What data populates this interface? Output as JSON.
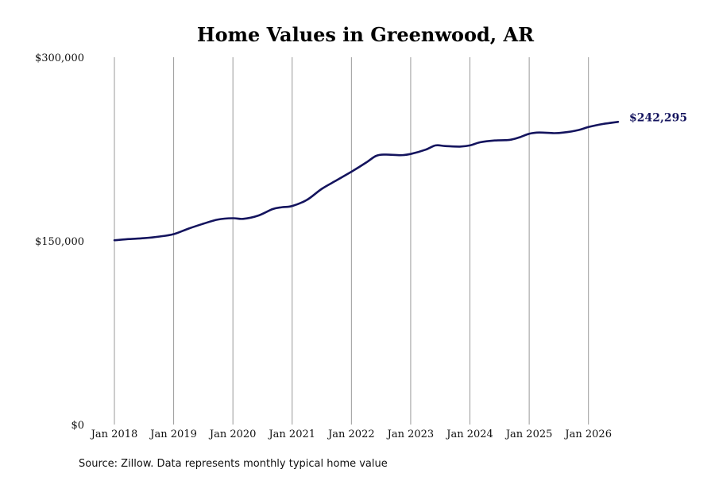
{
  "chart_data": {
    "type": "line",
    "title": "Home Values in Greenwood, AR",
    "source": "Source: Zillow. Data represents monthly typical home value",
    "ylim": [
      0,
      300000
    ],
    "yticks": [
      {
        "value": 0,
        "label": "$0"
      },
      {
        "value": 150000,
        "label": "$150,000"
      },
      {
        "value": 300000,
        "label": "$300,000"
      }
    ],
    "xticks": [
      {
        "value": 2018.0,
        "label": "Jan 2018"
      },
      {
        "value": 2019.0,
        "label": "Jan 2019"
      },
      {
        "value": 2020.0,
        "label": "Jan 2020"
      },
      {
        "value": 2021.0,
        "label": "Jan 2021"
      },
      {
        "value": 2022.0,
        "label": "Jan 2022"
      },
      {
        "value": 2023.0,
        "label": "Jan 2023"
      },
      {
        "value": 2024.0,
        "label": "Jan 2024"
      },
      {
        "value": 2025.0,
        "label": "Jan 2025"
      },
      {
        "value": 2026.0,
        "label": "Jan 2026"
      }
    ],
    "xlim": [
      2018.0,
      2026.5
    ],
    "grid": "vertical",
    "line_color": "#14145e",
    "end_label": "$242,295",
    "series": [
      {
        "x": [
          2018.0,
          2018.25,
          2018.5,
          2018.75,
          2019.0,
          2019.25,
          2019.5,
          2019.75,
          2020.0,
          2020.17,
          2020.42,
          2020.67,
          2020.83,
          2021.0,
          2021.25,
          2021.5,
          2021.75,
          2022.0,
          2022.25,
          2022.42,
          2022.58,
          2022.83,
          2023.0,
          2023.25,
          2023.42,
          2023.58,
          2023.83,
          2024.0,
          2024.17,
          2024.42,
          2024.67,
          2024.83,
          2025.0,
          2025.17,
          2025.42,
          2025.58,
          2025.83,
          2026.0,
          2026.25,
          2026.5
        ],
        "y": [
          150500,
          151500,
          152200,
          153500,
          155500,
          160000,
          164000,
          167500,
          168500,
          168000,
          170500,
          176000,
          177500,
          178500,
          183500,
          192500,
          199500,
          206500,
          214000,
          219500,
          220500,
          220000,
          221000,
          224500,
          228000,
          227500,
          227000,
          228000,
          230500,
          232000,
          232500,
          234500,
          237500,
          238500,
          238000,
          238500,
          240500,
          243000,
          245500,
          247200
        ]
      }
    ]
  }
}
